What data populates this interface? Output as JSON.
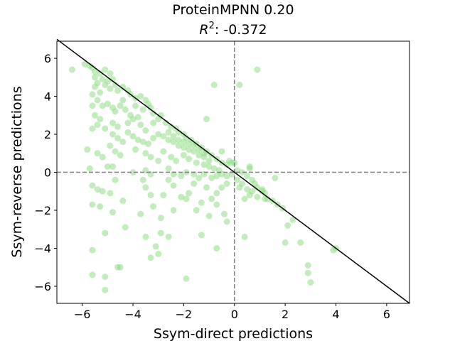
{
  "chart_data": {
    "type": "scatter",
    "title": "ProteinMPNN 0.20",
    "subtitle_prefix": "R",
    "subtitle_sup": "2",
    "subtitle_value": ": -0.372",
    "xlabel": "Ssym-direct predictions",
    "ylabel": "Ssym-reverse predictions",
    "xlim": [
      -7.0,
      6.9
    ],
    "ylim": [
      -6.9,
      6.9
    ],
    "xticks": [
      -6,
      -4,
      -2,
      0,
      2,
      4,
      6
    ],
    "yticks": [
      -6,
      -4,
      -2,
      0,
      2,
      4,
      6
    ],
    "xtick_labels": [
      "−6",
      "−4",
      "−2",
      "0",
      "2",
      "4",
      "6"
    ],
    "ytick_labels": [
      "−6",
      "−4",
      "−2",
      "0",
      "2",
      "4",
      "6"
    ],
    "point_color": "#90dc85",
    "identity_line": "y = -x",
    "reference_lines": [
      "x = 0",
      "y = 0"
    ],
    "grid": false,
    "points": [
      [
        -6.4,
        5.4
      ],
      [
        -5.9,
        5.7
      ],
      [
        -5.7,
        5.6
      ],
      [
        -5.6,
        5.5
      ],
      [
        -5.5,
        5.3
      ],
      [
        -5.5,
        5.0
      ],
      [
        -5.4,
        4.7
      ],
      [
        -5.5,
        4.5
      ],
      [
        -5.3,
        5.2
      ],
      [
        -5.2,
        4.9
      ],
      [
        -5.1,
        5.4
      ],
      [
        -5.0,
        4.8
      ],
      [
        -4.9,
        5.2
      ],
      [
        -4.8,
        4.9
      ],
      [
        -4.7,
        4.6
      ],
      [
        -5.6,
        4.1
      ],
      [
        -5.3,
        4.2
      ],
      [
        -5.1,
        4.6
      ],
      [
        -4.9,
        4.4
      ],
      [
        -4.6,
        4.3
      ],
      [
        -4.4,
        4.5
      ],
      [
        -4.2,
        4.3
      ],
      [
        -4.1,
        4.1
      ],
      [
        -3.9,
        3.9
      ],
      [
        -3.7,
        4.0
      ],
      [
        -3.5,
        3.8
      ],
      [
        -3.4,
        3.6
      ],
      [
        -5.4,
        3.8
      ],
      [
        -5.2,
        3.5
      ],
      [
        -5.0,
        3.6
      ],
      [
        -4.8,
        3.4
      ],
      [
        -4.7,
        3.2
      ],
      [
        -4.5,
        3.5
      ],
      [
        -4.4,
        3.8
      ],
      [
        -4.3,
        3.3
      ],
      [
        -4.1,
        3.0
      ],
      [
        -3.9,
        3.5
      ],
      [
        -3.6,
        3.3
      ],
      [
        -3.3,
        3.4
      ],
      [
        -3.2,
        3.1
      ],
      [
        -5.6,
        3.5
      ],
      [
        -5.5,
        3.0
      ],
      [
        -5.3,
        2.8
      ],
      [
        -5.6,
        2.3
      ],
      [
        -5.4,
        2.5
      ],
      [
        -5.1,
        2.3
      ],
      [
        -4.8,
        2.6
      ],
      [
        -4.6,
        2.4
      ],
      [
        -4.2,
        2.6
      ],
      [
        -4.0,
        2.8
      ],
      [
        -3.8,
        2.9
      ],
      [
        -3.7,
        2.5
      ],
      [
        -3.5,
        2.2
      ],
      [
        -3.2,
        2.6
      ],
      [
        -3.0,
        2.8
      ],
      [
        -2.9,
        3.0
      ],
      [
        -2.7,
        2.6
      ],
      [
        -2.5,
        2.4
      ],
      [
        -2.3,
        2.3
      ],
      [
        -2.2,
        2.1
      ],
      [
        -2.0,
        2.0
      ],
      [
        -1.9,
        1.8
      ],
      [
        -1.7,
        1.7
      ],
      [
        -1.5,
        1.5
      ],
      [
        -1.3,
        1.3
      ],
      [
        -1.1,
        1.1
      ],
      [
        -0.9,
        0.9
      ],
      [
        -0.7,
        0.7
      ],
      [
        -0.5,
        0.5
      ],
      [
        -0.3,
        0.4
      ],
      [
        -0.2,
        0.6
      ],
      [
        -0.1,
        0.5
      ],
      [
        -4.8,
        2.0
      ],
      [
        -4.6,
        1.8
      ],
      [
        -4.4,
        1.6
      ],
      [
        -4.2,
        2.1
      ],
      [
        -4.0,
        1.9
      ],
      [
        -3.8,
        1.7
      ],
      [
        -3.6,
        1.6
      ],
      [
        -3.4,
        1.5
      ],
      [
        -3.2,
        1.8
      ],
      [
        -3.0,
        2.0
      ],
      [
        -2.8,
        1.9
      ],
      [
        -2.6,
        1.7
      ],
      [
        -2.4,
        1.6
      ],
      [
        -2.2,
        1.4
      ],
      [
        -2.0,
        1.3
      ],
      [
        -1.8,
        1.2
      ],
      [
        -1.6,
        1.1
      ],
      [
        -1.4,
        0.9
      ],
      [
        -1.2,
        0.8
      ],
      [
        -1.0,
        0.6
      ],
      [
        -2.6,
        2.1
      ],
      [
        -2.4,
        1.9
      ],
      [
        -2.2,
        1.7
      ],
      [
        -2.0,
        1.6
      ],
      [
        -1.8,
        1.5
      ],
      [
        -1.6,
        1.4
      ],
      [
        -1.4,
        1.2
      ],
      [
        -1.2,
        1.0
      ],
      [
        -5.8,
        1.2
      ],
      [
        -5.4,
        1.0
      ],
      [
        -5.2,
        0.8
      ],
      [
        -4.9,
        1.4
      ],
      [
        -4.7,
        1.1
      ],
      [
        -4.5,
        0.9
      ],
      [
        -3.9,
        1.2
      ],
      [
        -3.5,
        1.0
      ],
      [
        -3.3,
        0.8
      ],
      [
        -3.0,
        0.6
      ],
      [
        -2.8,
        1.1
      ],
      [
        -2.5,
        0.8
      ],
      [
        -2.3,
        0.6
      ],
      [
        -2.0,
        0.9
      ],
      [
        -1.8,
        0.7
      ],
      [
        -1.5,
        0.5
      ],
      [
        -1.2,
        0.4
      ],
      [
        -1.0,
        0.3
      ],
      [
        -0.8,
        0.2
      ],
      [
        -0.6,
        0.1
      ],
      [
        -5.7,
        0.2
      ],
      [
        -5.0,
        0.3
      ],
      [
        -4.8,
        0.3
      ],
      [
        -4.0,
        0.0
      ],
      [
        -3.5,
        0.1
      ],
      [
        -3.3,
        -0.1
      ],
      [
        -2.6,
        0.2
      ],
      [
        -2.4,
        -0.1
      ],
      [
        -2.1,
        -0.2
      ],
      [
        -1.9,
        0.0
      ],
      [
        -1.6,
        -0.1
      ],
      [
        -1.4,
        -0.3
      ],
      [
        -1.2,
        -0.1
      ],
      [
        -0.9,
        -0.3
      ],
      [
        -0.7,
        -0.2
      ],
      [
        -0.5,
        -0.1
      ],
      [
        -0.3,
        -0.2
      ],
      [
        -0.1,
        -0.1
      ],
      [
        0.1,
        0.1
      ],
      [
        0.3,
        0.0
      ],
      [
        0.5,
        -0.2
      ],
      [
        0.6,
        0.2
      ],
      [
        0.7,
        -0.4
      ],
      [
        0.8,
        -0.6
      ],
      [
        0.9,
        -0.8
      ],
      [
        1.1,
        -0.9
      ],
      [
        1.2,
        -1.1
      ],
      [
        1.3,
        -1.4
      ],
      [
        1.5,
        -1.5
      ],
      [
        1.7,
        -1.7
      ],
      [
        1.9,
        -1.9
      ],
      [
        2.1,
        -2.8
      ],
      [
        2.3,
        -2.5
      ],
      [
        2.6,
        -3.7
      ],
      [
        2.9,
        -4.9
      ],
      [
        2.9,
        -5.3
      ],
      [
        3.0,
        -5.8
      ],
      [
        3.9,
        -4.1
      ],
      [
        4.0,
        -4.0
      ],
      [
        2.0,
        -3.7
      ],
      [
        0.3,
        -0.6
      ],
      [
        0.5,
        -0.9
      ],
      [
        0.7,
        -1.0
      ],
      [
        0.9,
        -1.3
      ],
      [
        0.4,
        -1.4
      ],
      [
        0.6,
        -1.2
      ],
      [
        0.2,
        -0.8
      ],
      [
        0.1,
        -0.4
      ],
      [
        -0.3,
        -0.6
      ],
      [
        -0.5,
        -0.8
      ],
      [
        -0.7,
        -1.1
      ],
      [
        -0.9,
        -1.4
      ],
      [
        -1.1,
        -0.8
      ],
      [
        -1.3,
        -1.6
      ],
      [
        -1.6,
        -0.6
      ],
      [
        -1.8,
        -1.1
      ],
      [
        -2.1,
        -1.3
      ],
      [
        -2.4,
        -0.7
      ],
      [
        -2.6,
        -0.4
      ],
      [
        -2.8,
        -1.2
      ],
      [
        -5.6,
        -0.7
      ],
      [
        -5.4,
        -0.9
      ],
      [
        -5.2,
        -1.0
      ],
      [
        -4.7,
        -0.4
      ],
      [
        -4.9,
        -1.1
      ],
      [
        -4.4,
        -1.5
      ],
      [
        -3.6,
        -0.4
      ],
      [
        -3.5,
        -0.8
      ],
      [
        -3.3,
        -1.2
      ],
      [
        -3.2,
        -1.8
      ],
      [
        -2.9,
        -2.4
      ],
      [
        -2.4,
        -2.0
      ],
      [
        -1.9,
        -1.4
      ],
      [
        -1.5,
        -2.0
      ],
      [
        -1.0,
        -2.3
      ],
      [
        -0.4,
        -2.2
      ],
      [
        -0.3,
        -2.6
      ],
      [
        -0.7,
        -1.7
      ],
      [
        -5.6,
        -1.7
      ],
      [
        -5.3,
        -1.8
      ],
      [
        -4.8,
        -2.1
      ],
      [
        -3.7,
        -2.2
      ],
      [
        -3.5,
        -3.4
      ],
      [
        -2.9,
        -3.2
      ],
      [
        -2.6,
        -3.4
      ],
      [
        -1.3,
        -3.3
      ],
      [
        -0.7,
        -4.0
      ],
      [
        0.4,
        -3.4
      ],
      [
        -4.3,
        -2.9
      ],
      [
        -5.1,
        -3.2
      ],
      [
        -5.6,
        -4.1
      ],
      [
        -3.1,
        -3.9
      ],
      [
        -3.3,
        -4.5
      ],
      [
        -3.0,
        -4.3
      ],
      [
        -4.5,
        -5.0
      ],
      [
        -4.6,
        -5.0
      ],
      [
        -5.6,
        -5.4
      ],
      [
        -5.1,
        -5.5
      ],
      [
        -5.1,
        -6.2
      ],
      [
        -1.9,
        -5.6
      ],
      [
        -0.8,
        4.6
      ],
      [
        0.2,
        4.6
      ],
      [
        0.9,
        5.4
      ],
      [
        -1.1,
        2.8
      ],
      [
        -0.5,
        1.1
      ],
      [
        0.0,
        0.5
      ],
      [
        0.6,
        0.3
      ],
      [
        1.1,
        -1.0
      ],
      [
        1.6,
        -0.3
      ],
      [
        1.2,
        -1.4
      ]
    ]
  }
}
